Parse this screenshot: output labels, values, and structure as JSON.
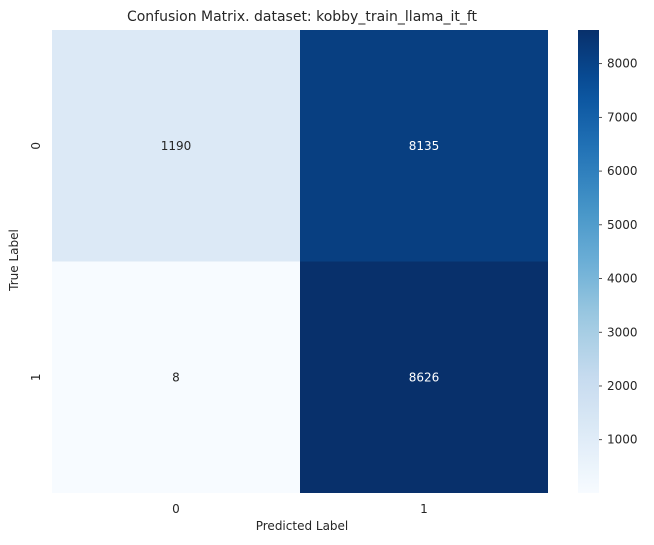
{
  "chart_data": {
    "type": "heatmap",
    "title": "Confusion Matrix. dataset: kobby_train_llama_it_ft",
    "xlabel": "Predicted Label",
    "ylabel": "True Label",
    "x_categories": [
      "0",
      "1"
    ],
    "y_categories": [
      "0",
      "1"
    ],
    "matrix": [
      [
        1190,
        8135
      ],
      [
        8,
        8626
      ]
    ],
    "colormap": "Blues",
    "colorbar": {
      "min": 8,
      "max": 8626,
      "ticks": [
        1000,
        2000,
        3000,
        4000,
        5000,
        6000,
        7000,
        8000
      ],
      "tick_labels": [
        "1000",
        "2000",
        "3000",
        "4000",
        "5000",
        "6000",
        "7000",
        "8000"
      ]
    },
    "grid": false
  }
}
